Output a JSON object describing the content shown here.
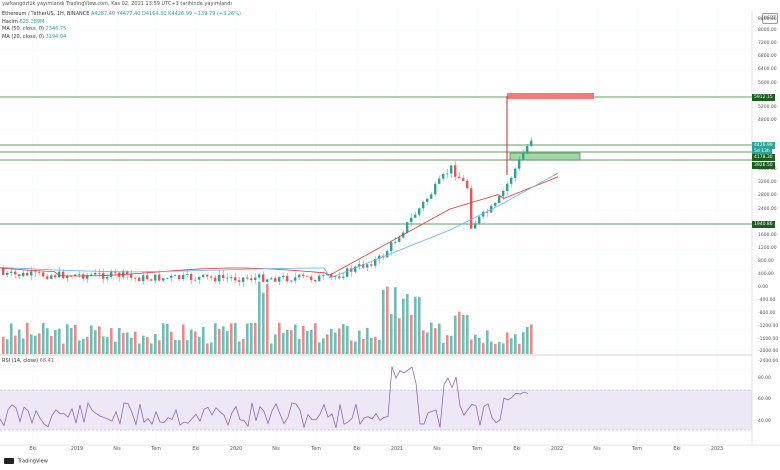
{
  "header": {
    "published_text": "yarkangözlük yayımlandı TradingView.com, Kas 02, 2021 13:59 UTC+3 tarihinde yayımlandı"
  },
  "legend": {
    "symbol": "Ethereum / TetherUS, 1H, BINANCE",
    "ohlc": "A4287.40 Y4477.40 D4164.30 K4426.99 +139.79 (+3.26%)",
    "volume_label": "Hacim",
    "volume_value": "625.389M",
    "ma1_label": "MA (50, close, 0)",
    "ma1_value": "2346.75",
    "ma2_label": "MA (20, close, 0)",
    "ma2_value": "3194.04",
    "rsi_label": "RSI (14, close)",
    "rsi_value": "68.41"
  },
  "currency": "USDT",
  "price_axis": [
    "8800.00",
    "8000.00",
    "7200.00",
    "6800.00",
    "6400.00",
    "5600.00",
    "5200.00",
    "4800.00",
    "3600.00",
    "3200.00",
    "2800.00",
    "2400.00",
    "1600.00",
    "1200.00",
    "800.00",
    "400.00",
    "0.00",
    "-400.00",
    "-800.00",
    "-1200.00",
    "-1600.00",
    "-2000.00",
    "-2400.00"
  ],
  "rsi_axis": [
    "80.00",
    "60.00",
    "40.00"
  ],
  "price_tags": [
    {
      "value": "5912.15",
      "color": "#1b5e20"
    },
    {
      "value": "4426.99",
      "color": "#26a69a"
    },
    {
      "value": "5d 13h",
      "color": "#26a69a"
    },
    {
      "value": "4178.30",
      "color": "#1b5e20"
    },
    {
      "value": "3926.50",
      "color": "#1b5e20"
    },
    {
      "value": "1940.86",
      "color": "#1b5e20"
    }
  ],
  "time_axis": [
    "Eki",
    "2019",
    "Nis",
    "Tem",
    "Eki",
    "2020",
    "Nis",
    "Tem",
    "Eki",
    "2021",
    "Nis",
    "Tem",
    "Eki",
    "2022",
    "Nis",
    "Tem",
    "Eki",
    "2023"
  ],
  "watermark": "TradingView",
  "colors": {
    "up": "#26a69a",
    "down": "#ef5350",
    "ma_red": "#e53935",
    "ma_blue": "#64b5f6",
    "rsi_line": "#7e57c2",
    "rsi_band": "#ede7f6"
  }
}
